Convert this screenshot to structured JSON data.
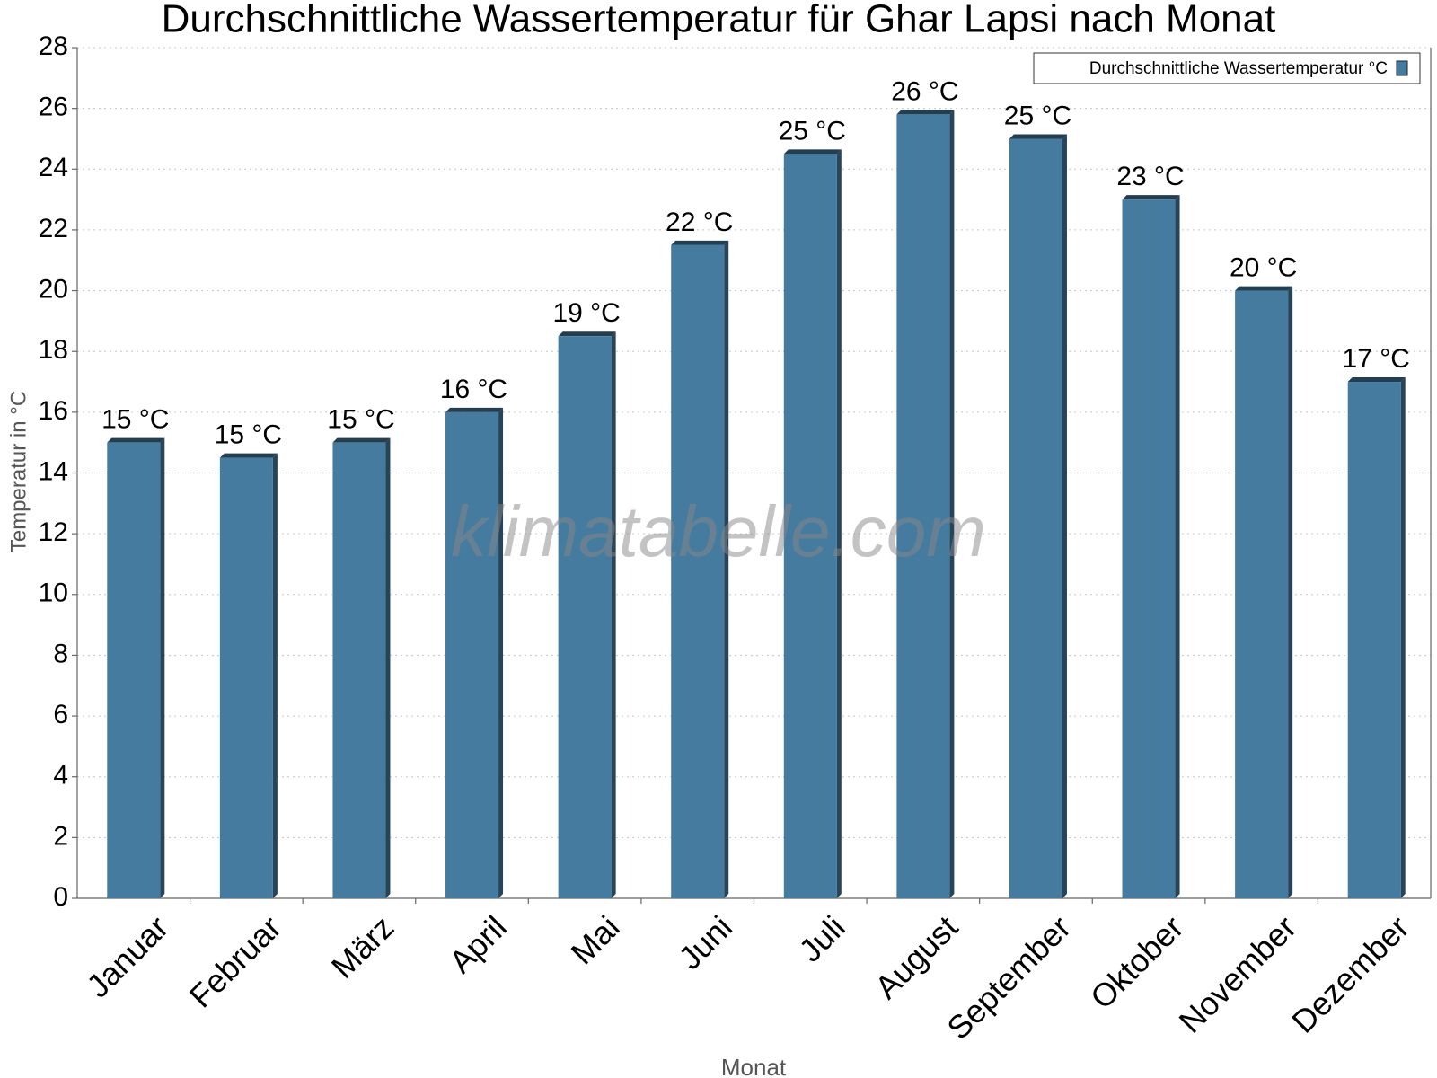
{
  "chart_data": {
    "type": "bar",
    "title": "Durchschnittliche Wassertemperatur für Ghar Lapsi nach Monat",
    "x_label": "Monat",
    "y_label": "Temperatur in °C",
    "watermark": "klimatabelle.com",
    "categories": [
      "Januar",
      "Februar",
      "März",
      "April",
      "Mai",
      "Juni",
      "Juli",
      "August",
      "September",
      "Oktober",
      "November",
      "Dezember"
    ],
    "series": [
      {
        "name": "Durchschnittliche Wassertemperatur °C",
        "color": "#467ba0",
        "values": [
          15,
          14.5,
          15,
          16,
          18.5,
          21.5,
          24.5,
          25.8,
          25,
          23,
          20,
          17
        ],
        "value_labels": [
          "15 °C",
          "15 °C",
          "15 °C",
          "16 °C",
          "19 °C",
          "22 °C",
          "25 °C",
          "26 °C",
          "25 °C",
          "23 °C",
          "20 °C",
          "17 °C"
        ]
      }
    ],
    "ylim": [
      0,
      28
    ],
    "yticks": [
      0,
      2,
      4,
      6,
      8,
      10,
      12,
      14,
      16,
      18,
      20,
      22,
      24,
      26,
      28
    ],
    "grid": true,
    "legend": "top-right"
  }
}
